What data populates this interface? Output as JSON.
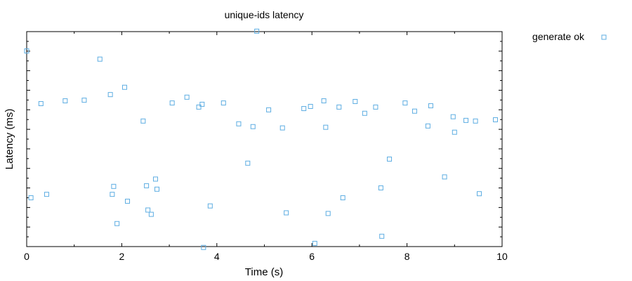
{
  "chart_data": {
    "type": "scatter",
    "title": "unique-ids latency",
    "xlabel": "Time (s)",
    "ylabel": "Latency (ms)",
    "xlim": [
      0,
      10
    ],
    "xticks": [
      0,
      2,
      4,
      6,
      8,
      10
    ],
    "ylim": [
      0,
      10
    ],
    "yticks_unlabeled": true,
    "grid": false,
    "legend_position": "outside-top-right",
    "colors": {
      "series": "#5dade2",
      "axis": "#000000",
      "background": "#ffffff"
    },
    "series": [
      {
        "name": "generate ok",
        "marker": "open-square",
        "points": [
          [
            0.0,
            9.1
          ],
          [
            0.09,
            2.27
          ],
          [
            0.3,
            6.65
          ],
          [
            0.42,
            2.43
          ],
          [
            0.81,
            6.78
          ],
          [
            1.21,
            6.81
          ],
          [
            1.54,
            8.72
          ],
          [
            1.76,
            7.07
          ],
          [
            1.8,
            2.43
          ],
          [
            1.83,
            2.8
          ],
          [
            1.9,
            1.07
          ],
          [
            2.06,
            7.41
          ],
          [
            2.12,
            2.11
          ],
          [
            2.45,
            5.84
          ],
          [
            2.52,
            2.83
          ],
          [
            2.55,
            1.7
          ],
          [
            2.62,
            1.5
          ],
          [
            2.71,
            3.14
          ],
          [
            2.74,
            2.67
          ],
          [
            3.06,
            6.68
          ],
          [
            3.37,
            6.95
          ],
          [
            3.62,
            6.49
          ],
          [
            3.69,
            6.62
          ],
          [
            3.72,
            -0.04
          ],
          [
            3.86,
            1.89
          ],
          [
            4.14,
            6.68
          ],
          [
            4.46,
            5.71
          ],
          [
            4.65,
            3.88
          ],
          [
            4.76,
            5.58
          ],
          [
            4.84,
            10.02
          ],
          [
            5.09,
            6.36
          ],
          [
            5.38,
            5.52
          ],
          [
            5.46,
            1.57
          ],
          [
            5.83,
            6.42
          ],
          [
            5.97,
            6.52
          ],
          [
            6.06,
            0.15
          ],
          [
            6.25,
            6.78
          ],
          [
            6.29,
            5.55
          ],
          [
            6.34,
            1.54
          ],
          [
            6.57,
            6.49
          ],
          [
            6.65,
            2.27
          ],
          [
            6.91,
            6.75
          ],
          [
            7.11,
            6.2
          ],
          [
            7.34,
            6.49
          ],
          [
            7.45,
            2.73
          ],
          [
            7.47,
            0.48
          ],
          [
            7.63,
            4.07
          ],
          [
            7.96,
            6.68
          ],
          [
            8.16,
            6.3
          ],
          [
            8.44,
            5.61
          ],
          [
            8.5,
            6.55
          ],
          [
            8.79,
            3.24
          ],
          [
            8.97,
            6.04
          ],
          [
            9.0,
            5.32
          ],
          [
            9.24,
            5.87
          ],
          [
            9.44,
            5.84
          ],
          [
            9.52,
            2.46
          ],
          [
            9.86,
            5.9
          ]
        ]
      }
    ]
  }
}
